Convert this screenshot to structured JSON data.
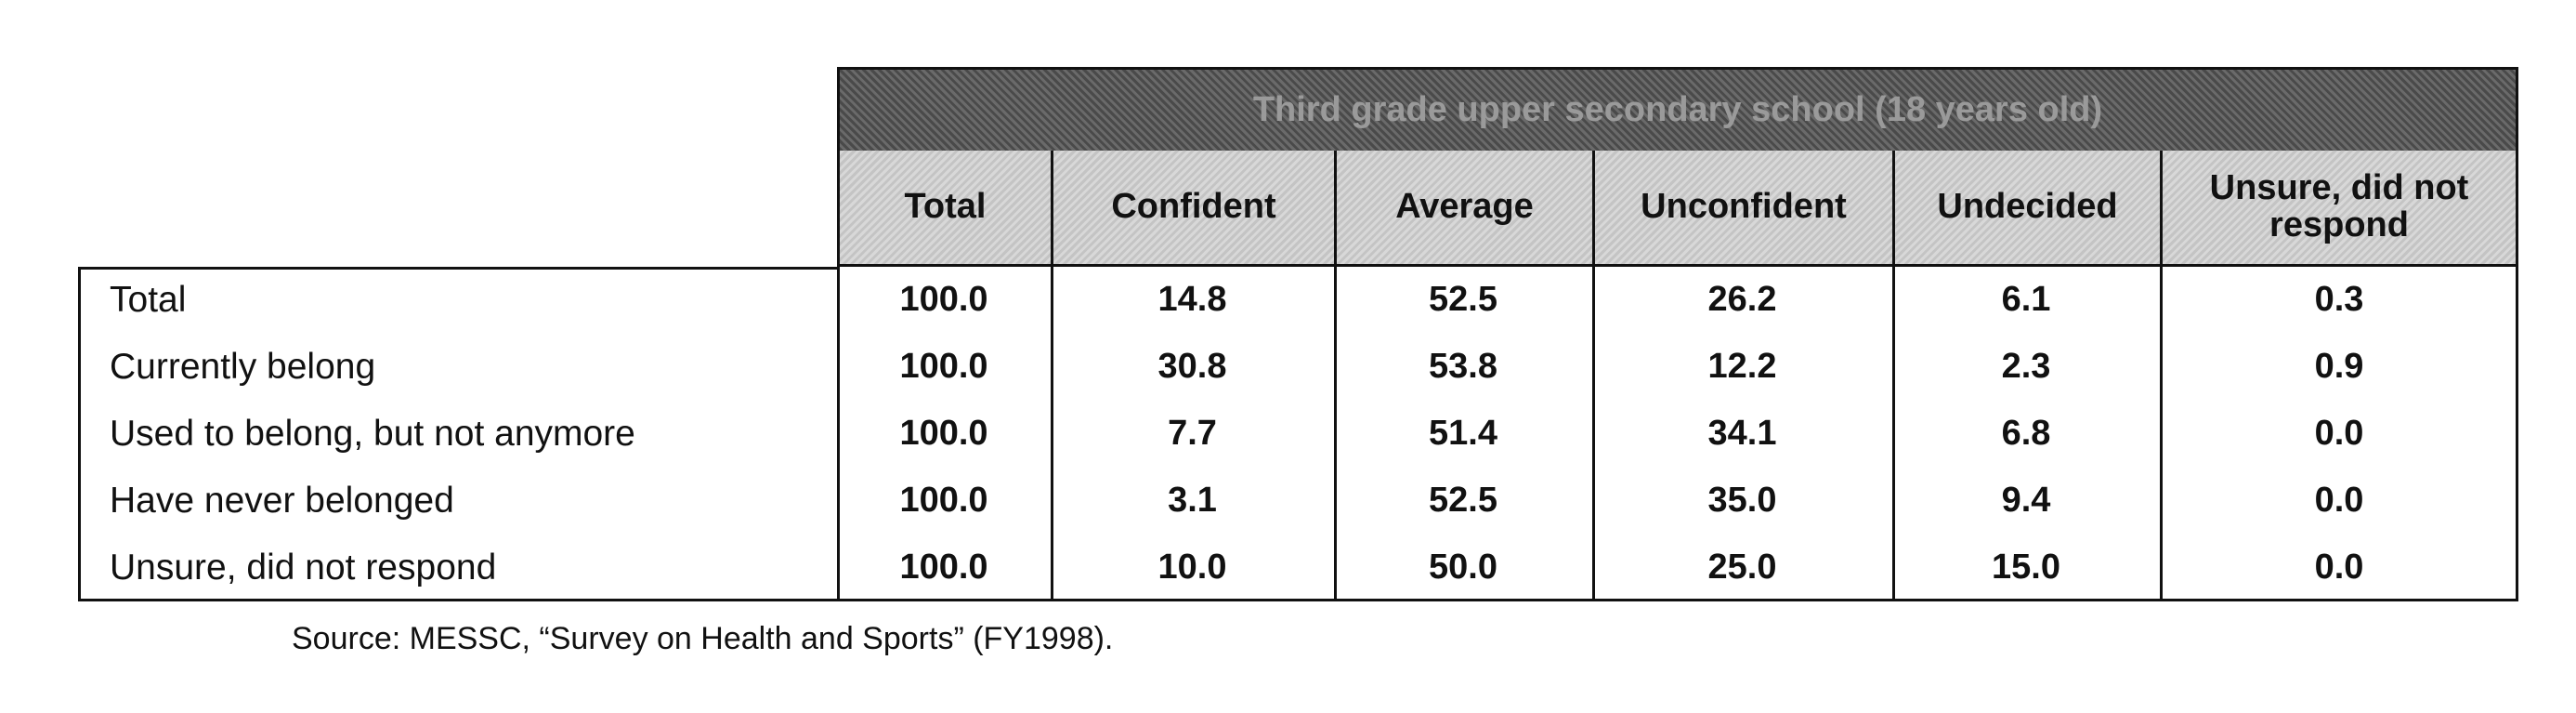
{
  "table": {
    "group_header": "Third grade upper secondary school (18 years old)",
    "columns": [
      "Total",
      "Confident",
      "Average",
      "Unconfident",
      "Undecided",
      "Unsure, did not respond"
    ],
    "rows": [
      {
        "label": "Total",
        "values": [
          "100.0",
          "14.8",
          "52.5",
          "26.2",
          "6.1",
          "0.3"
        ]
      },
      {
        "label": "Currently belong",
        "values": [
          "100.0",
          "30.8",
          "53.8",
          "12.2",
          "2.3",
          "0.9"
        ]
      },
      {
        "label": "Used to belong, but not anymore",
        "values": [
          "100.0",
          "7.7",
          "51.4",
          "34.1",
          "6.8",
          "0.0"
        ]
      },
      {
        "label": "Have never belonged",
        "values": [
          "100.0",
          "3.1",
          "52.5",
          "35.0",
          "9.4",
          "0.0"
        ]
      },
      {
        "label": "Unsure, did not respond",
        "values": [
          "100.0",
          "10.0",
          "50.0",
          "25.0",
          "15.0",
          "0.0"
        ]
      }
    ]
  },
  "source": "Source: MESSC, “Survey on Health and Sports” (FY1998)."
}
